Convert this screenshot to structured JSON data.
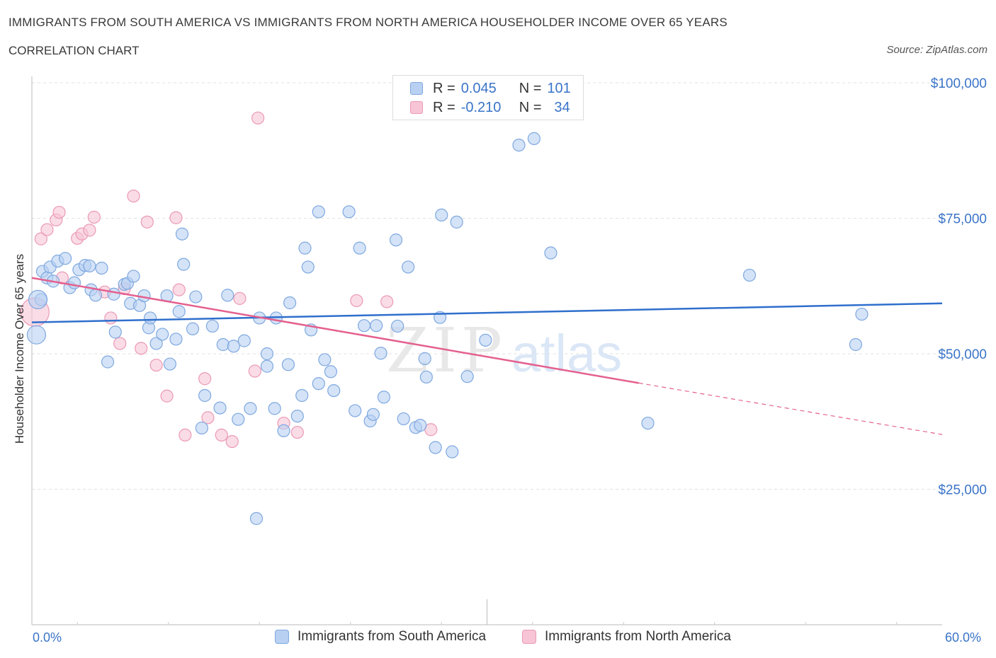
{
  "header": {
    "title": "IMMIGRANTS FROM SOUTH AMERICA VS IMMIGRANTS FROM NORTH AMERICA HOUSEHOLDER INCOME OVER 65 YEARS",
    "subtitle": "CORRELATION CHART",
    "source": "Source: ZipAtlas.com"
  },
  "stats": {
    "south": {
      "r_label": "R =",
      "r": "0.045",
      "n_label": "N =",
      "n": "101"
    },
    "north": {
      "r_label": "R =",
      "r": "-0.210",
      "n_label": "N =",
      "n": "34"
    }
  },
  "colors": {
    "blue_fill": "#b8d0f2",
    "blue_stroke": "#7fa8e0",
    "blue_line": "#2f6fcc",
    "pink_fill": "#f7c5d5",
    "pink_stroke": "#eb99b5",
    "pink_line": "#e4608f",
    "tick_label": "#3a74c8",
    "grid": "#e2e2e2"
  },
  "watermark": {
    "zip": "ZIP",
    "atlas": "atlas"
  },
  "chart_data": {
    "type": "scatter",
    "title": "IMMIGRANTS FROM SOUTH AMERICA VS IMMIGRANTS FROM NORTH AMERICA HOUSEHOLDER INCOME OVER 65 YEARS",
    "xlabel": "",
    "ylabel": "Householder Income Over 65 years",
    "xlim": [
      0,
      60
    ],
    "ylim": [
      0,
      100000
    ],
    "x_tick_labels": [
      "0.0%",
      "60.0%"
    ],
    "y_ticks": [
      25000,
      50000,
      75000,
      100000
    ],
    "y_tick_labels": [
      "$25,000",
      "$50,000",
      "$75,000",
      "$100,000"
    ],
    "grid": true,
    "legend_position": "bottom-center",
    "series": [
      {
        "name": "Immigrants from South America",
        "color": "#b8d0f2",
        "points": [
          [
            0.3,
            53500
          ],
          [
            0.6,
            60000
          ],
          [
            0.7,
            65200
          ],
          [
            1.0,
            64000
          ],
          [
            1.2,
            66000
          ],
          [
            1.4,
            63400
          ],
          [
            1.7,
            67100
          ],
          [
            2.2,
            67600
          ],
          [
            2.5,
            62200
          ],
          [
            2.8,
            63100
          ],
          [
            3.1,
            65500
          ],
          [
            3.5,
            66300
          ],
          [
            3.8,
            66200
          ],
          [
            3.9,
            61800
          ],
          [
            4.2,
            60800
          ],
          [
            4.6,
            65800
          ],
          [
            5.0,
            48500
          ],
          [
            5.4,
            61000
          ],
          [
            5.5,
            54000
          ],
          [
            6.1,
            62800
          ],
          [
            6.3,
            63000
          ],
          [
            6.5,
            59300
          ],
          [
            6.7,
            64300
          ],
          [
            7.1,
            58900
          ],
          [
            7.4,
            60700
          ],
          [
            7.7,
            54800
          ],
          [
            7.8,
            56600
          ],
          [
            8.2,
            51900
          ],
          [
            8.6,
            53600
          ],
          [
            8.9,
            60700
          ],
          [
            9.1,
            48100
          ],
          [
            9.5,
            52700
          ],
          [
            9.7,
            57800
          ],
          [
            9.9,
            72100
          ],
          [
            10.0,
            66500
          ],
          [
            10.6,
            54600
          ],
          [
            10.8,
            60500
          ],
          [
            11.2,
            36300
          ],
          [
            11.4,
            42300
          ],
          [
            11.9,
            55100
          ],
          [
            12.4,
            40000
          ],
          [
            12.6,
            51700
          ],
          [
            12.9,
            60800
          ],
          [
            13.3,
            51400
          ],
          [
            13.6,
            37900
          ],
          [
            14.0,
            52400
          ],
          [
            14.4,
            39900
          ],
          [
            14.8,
            19600
          ],
          [
            15.0,
            56600
          ],
          [
            15.5,
            47700
          ],
          [
            15.5,
            50000
          ],
          [
            16.0,
            39900
          ],
          [
            16.1,
            56600
          ],
          [
            16.6,
            35800
          ],
          [
            16.9,
            48000
          ],
          [
            17.0,
            59400
          ],
          [
            17.5,
            38500
          ],
          [
            17.8,
            42300
          ],
          [
            18.0,
            69500
          ],
          [
            18.2,
            66000
          ],
          [
            18.4,
            54400
          ],
          [
            18.9,
            76200
          ],
          [
            18.9,
            44500
          ],
          [
            19.3,
            48900
          ],
          [
            19.7,
            46700
          ],
          [
            19.9,
            43200
          ],
          [
            20.9,
            76200
          ],
          [
            21.3,
            39500
          ],
          [
            21.6,
            69500
          ],
          [
            21.9,
            55200
          ],
          [
            22.3,
            37600
          ],
          [
            22.5,
            38800
          ],
          [
            22.7,
            55200
          ],
          [
            23.0,
            50100
          ],
          [
            23.2,
            42000
          ],
          [
            24.0,
            71000
          ],
          [
            24.1,
            55100
          ],
          [
            24.5,
            38000
          ],
          [
            24.8,
            66000
          ],
          [
            25.0,
            94800
          ],
          [
            25.3,
            36400
          ],
          [
            25.6,
            36800
          ],
          [
            25.9,
            49100
          ],
          [
            26.0,
            45700
          ],
          [
            26.6,
            32700
          ],
          [
            26.9,
            56700
          ],
          [
            27.0,
            75600
          ],
          [
            27.7,
            31900
          ],
          [
            28.0,
            74300
          ],
          [
            28.7,
            45800
          ],
          [
            29.9,
            52500
          ],
          [
            31.4,
            96300
          ],
          [
            31.8,
            96600
          ],
          [
            32.1,
            88500
          ],
          [
            33.1,
            89700
          ],
          [
            34.2,
            68600
          ],
          [
            40.6,
            37200
          ],
          [
            47.3,
            64500
          ],
          [
            54.3,
            51700
          ],
          [
            54.7,
            57300
          ],
          [
            0.4,
            60000
          ]
        ]
      },
      {
        "name": "Immigrants from North America",
        "color": "#f7c5d5",
        "points": [
          [
            0.2,
            57700
          ],
          [
            0.6,
            71200
          ],
          [
            1.0,
            72900
          ],
          [
            1.6,
            74700
          ],
          [
            1.8,
            76100
          ],
          [
            2.0,
            64000
          ],
          [
            3.0,
            71300
          ],
          [
            3.3,
            72100
          ],
          [
            3.8,
            72800
          ],
          [
            4.1,
            75200
          ],
          [
            4.8,
            61400
          ],
          [
            5.2,
            56600
          ],
          [
            5.8,
            51900
          ],
          [
            6.1,
            62000
          ],
          [
            6.7,
            79100
          ],
          [
            7.2,
            51000
          ],
          [
            7.6,
            74300
          ],
          [
            8.2,
            47900
          ],
          [
            8.9,
            42200
          ],
          [
            9.5,
            75100
          ],
          [
            9.7,
            61800
          ],
          [
            10.1,
            35000
          ],
          [
            11.4,
            45400
          ],
          [
            11.6,
            38200
          ],
          [
            12.5,
            35000
          ],
          [
            13.2,
            33800
          ],
          [
            13.7,
            60200
          ],
          [
            14.7,
            46800
          ],
          [
            14.9,
            93500
          ],
          [
            16.6,
            37200
          ],
          [
            17.5,
            35500
          ],
          [
            21.4,
            59800
          ],
          [
            23.4,
            59600
          ],
          [
            26.3,
            36000
          ]
        ]
      }
    ],
    "trend_lines": [
      {
        "series": "Immigrants from South America",
        "x": [
          0,
          60
        ],
        "y": [
          55800,
          59300
        ]
      },
      {
        "series": "Immigrants from North America",
        "x": [
          0,
          40
        ],
        "y": [
          64000,
          44600
        ],
        "dashed_extension": {
          "x": [
            40,
            60
          ],
          "y": [
            44600,
            35100
          ]
        }
      }
    ]
  }
}
